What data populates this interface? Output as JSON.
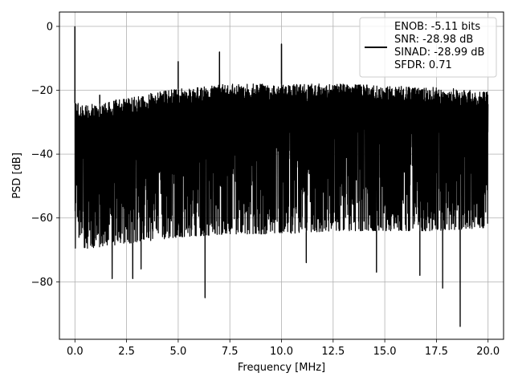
{
  "chart_data": {
    "type": "line",
    "title": "",
    "xlabel": "Frequency [MHz]",
    "ylabel": "PSD [dB]",
    "xlim": [
      -0.75,
      20.75
    ],
    "ylim": [
      -98,
      4.5
    ],
    "grid": true,
    "legend_position": "upper-right",
    "xticks": [
      0.0,
      2.5,
      5.0,
      7.5,
      10.0,
      12.5,
      15.0,
      17.5,
      20.0
    ],
    "xtick_labels": [
      "0.0",
      "2.5",
      "5.0",
      "7.5",
      "10.0",
      "12.5",
      "15.0",
      "17.5",
      "20.0"
    ],
    "yticks": [
      0,
      -20,
      -40,
      -60,
      -80
    ],
    "ytick_labels": [
      "0",
      "−20",
      "−40",
      "−60",
      "−80"
    ],
    "series": [
      {
        "legend_lines": [
          "ENOB: -5.11 bits",
          "SNR: -28.98 dB",
          "SINAD: -28.99 dB",
          "SFDR: 0.71"
        ],
        "color": "#000000",
        "frequency_range_mhz": [
          0,
          20
        ],
        "noise_envelope": {
          "upper_db": [
            [
              0.0,
              -24
            ],
            [
              1.0,
              -24.5
            ],
            [
              2.0,
              -23
            ],
            [
              3.0,
              -22
            ],
            [
              4.0,
              -20.5
            ],
            [
              5.0,
              -19.5
            ],
            [
              7.5,
              -18
            ],
            [
              10.0,
              -18
            ],
            [
              12.5,
              -18
            ],
            [
              15.0,
              -18.5
            ],
            [
              17.5,
              -19
            ],
            [
              20.0,
              -20.5
            ]
          ],
          "lower_db": [
            [
              0.0,
              -70
            ],
            [
              2.5,
              -68
            ],
            [
              5.0,
              -66
            ],
            [
              7.5,
              -65
            ],
            [
              10.0,
              -65
            ],
            [
              12.5,
              -64
            ],
            [
              15.0,
              -64
            ],
            [
              17.5,
              -64
            ],
            [
              20.0,
              -63
            ]
          ]
        },
        "peaks": [
          {
            "x": 0.0,
            "y": 0
          },
          {
            "x": 5.0,
            "y": -11
          },
          {
            "x": 7.0,
            "y": -8
          },
          {
            "x": 10.0,
            "y": -5.5
          },
          {
            "x": 1.2,
            "y": -21.5
          }
        ],
        "dips": [
          {
            "x": 1.8,
            "y": -79
          },
          {
            "x": 2.8,
            "y": -79
          },
          {
            "x": 6.3,
            "y": -85
          },
          {
            "x": 18.65,
            "y": -94
          },
          {
            "x": 17.8,
            "y": -82
          },
          {
            "x": 3.2,
            "y": -76
          },
          {
            "x": 11.2,
            "y": -74
          },
          {
            "x": 14.6,
            "y": -77
          },
          {
            "x": 16.7,
            "y": -78
          }
        ]
      }
    ]
  },
  "colors": {
    "line": "#000000",
    "grid": "#b0b0b0",
    "axes": "#000000",
    "background": "#ffffff"
  }
}
